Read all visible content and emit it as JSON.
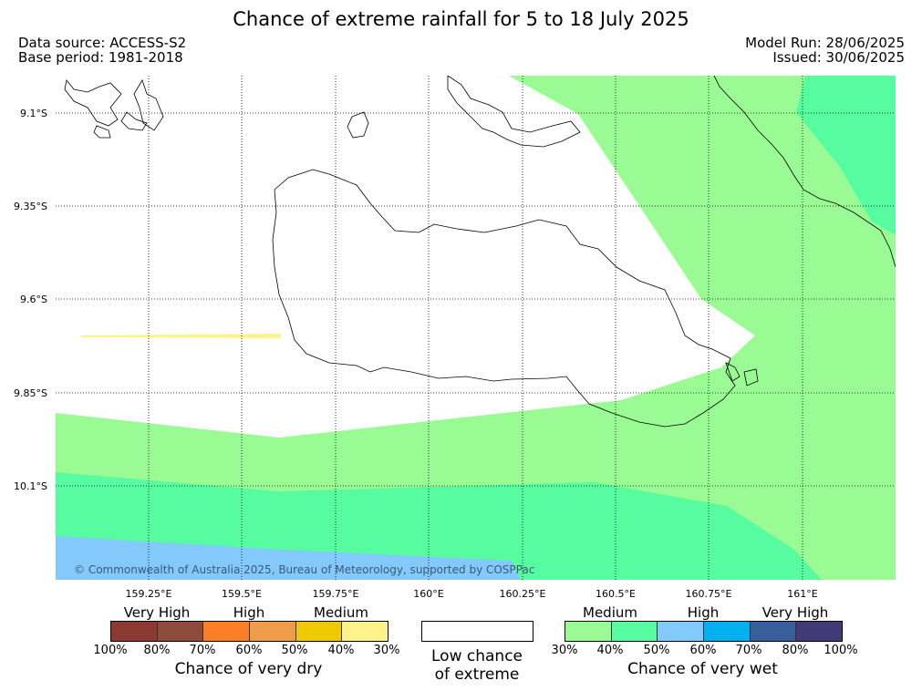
{
  "title": "Chance of extreme rainfall for 5 to 18 July 2025",
  "data_source": "Data source: ACCESS-S2",
  "base_period": "Base period: 1981-2018",
  "model_run": "Model Run: 28/06/2025",
  "issued": "Issued: 30/06/2025",
  "copyright": "© Commonwealth of Australia 2025, Bureau of Meteorology, supported by COSPPac",
  "lat_labels": [
    "9.1°S",
    "9.35°S",
    "9.6°S",
    "9.85°S",
    "10.1°S"
  ],
  "lon_labels": [
    "159.25°E",
    "159.5°E",
    "159.75°E",
    "160°E",
    "160.25°E",
    "160.5°E",
    "160.75°E",
    "161°E"
  ],
  "colors": {
    "wet_medium_light": "#9afa93",
    "wet_medium_dark": "#56fc9f",
    "wet_high_light": "#84c9fb",
    "dry_medium_light": "#fef38a"
  },
  "dry_legend": {
    "categories": [
      "Very High",
      "High",
      "Medium"
    ],
    "ticks": [
      "100%",
      "80%",
      "70%",
      "60%",
      "50%",
      "40%",
      "30%"
    ],
    "colors": [
      "#8b3a32",
      "#8d4c3b",
      "#fd7f25",
      "#ef9c4a",
      "#f0c800",
      "#fef38a"
    ],
    "caption": "Chance of very dry"
  },
  "low_legend": {
    "caption_line1": "Low chance",
    "caption_line2": "of extreme"
  },
  "wet_legend": {
    "categories": [
      "Medium",
      "High",
      "Very High"
    ],
    "ticks": [
      "30%",
      "40%",
      "50%",
      "60%",
      "70%",
      "80%",
      "100%"
    ],
    "colors": [
      "#9afa93",
      "#56fc9f",
      "#84c9fb",
      "#00b0f0",
      "#365f9b",
      "#403a76"
    ],
    "caption": "Chance of very wet"
  }
}
